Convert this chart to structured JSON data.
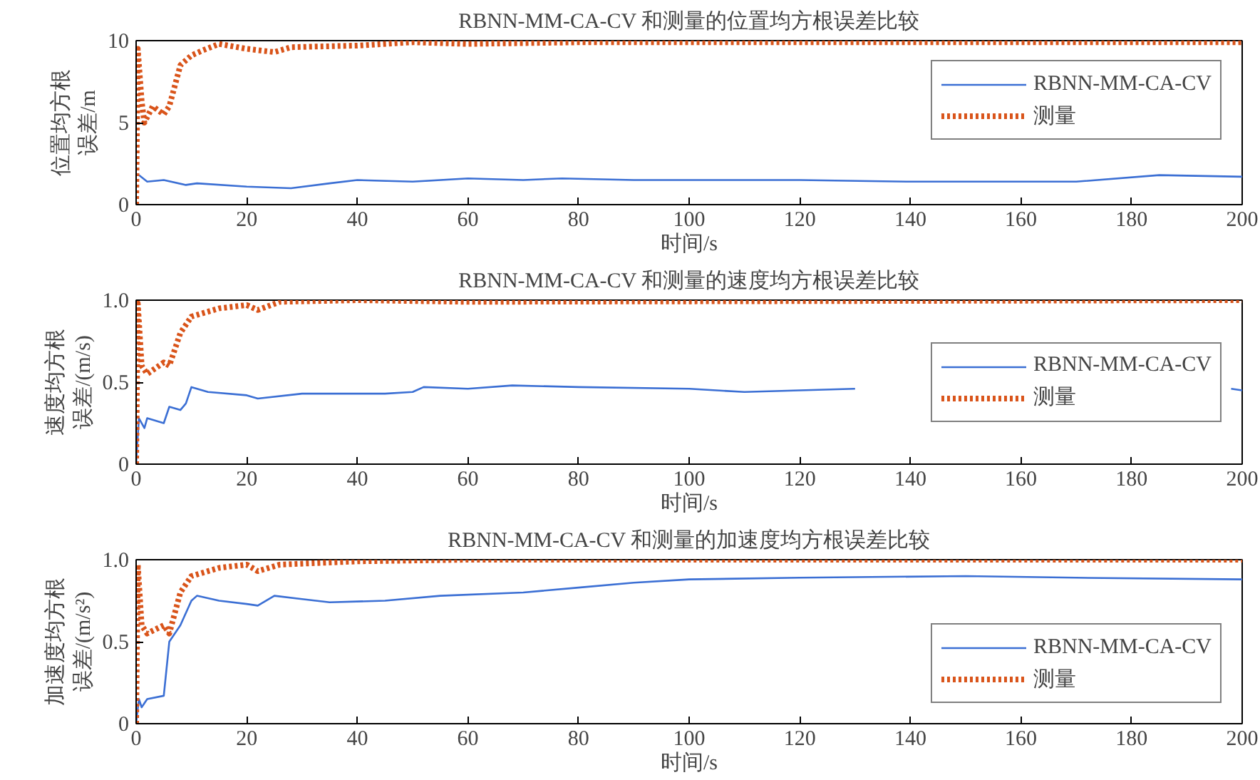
{
  "chart_data": [
    {
      "type": "line",
      "title": "RBNN-MM-CA-CV 和测量的位置均方根误差比较",
      "xlabel": "时间/s",
      "ylabel": "位置均方根误差/m",
      "xlim": [
        0,
        200
      ],
      "ylim": [
        0,
        10
      ],
      "xticks": [
        0,
        20,
        40,
        60,
        80,
        100,
        120,
        140,
        160,
        180,
        200
      ],
      "yticks": [
        0,
        5,
        10
      ],
      "grid": false,
      "legend": "top right",
      "series": [
        {
          "name": "RBNN-MM-CA-CV",
          "color": "#3b6fd4",
          "line_style": "solid",
          "x": [
            0.5,
            2,
            5,
            9,
            11,
            20,
            28,
            35,
            40,
            50,
            60,
            70,
            77,
            90,
            100,
            120,
            140,
            170,
            185,
            200
          ],
          "values": [
            1.8,
            1.4,
            1.5,
            1.2,
            1.3,
            1.1,
            1.0,
            1.3,
            1.5,
            1.4,
            1.6,
            1.5,
            1.6,
            1.5,
            1.5,
            1.5,
            1.4,
            1.4,
            1.8,
            1.7
          ]
        },
        {
          "name": "测量",
          "color": "#d9541a",
          "line_style": "dotted",
          "x": [
            0,
            0.3,
            1,
            1.5,
            3,
            5,
            6,
            8,
            10,
            12,
            15,
            20,
            25,
            28,
            40,
            50,
            60,
            80,
            200
          ],
          "values": [
            0,
            9.5,
            6.3,
            5,
            6,
            5.5,
            6,
            8.5,
            9.1,
            9.4,
            9.8,
            9.5,
            9.3,
            9.6,
            9.7,
            9.9,
            9.8,
            9.9,
            9.9
          ]
        }
      ]
    },
    {
      "type": "line",
      "title": "RBNN-MM-CA-CV 和测量的速度均方根误差比较",
      "xlabel": "时间/s",
      "ylabel": "速度均方根误差/(m/s)",
      "xlim": [
        0,
        200
      ],
      "ylim": [
        0,
        1
      ],
      "xticks": [
        0,
        20,
        40,
        60,
        80,
        100,
        120,
        140,
        160,
        180,
        200
      ],
      "yticks": [
        0,
        0.5,
        {
          "value": 1,
          "label": "1.0"
        }
      ],
      "grid": false,
      "legend": "right",
      "series": [
        {
          "name": "RBNN-MM-CA-CV",
          "color": "#3b6fd4",
          "line_style": "solid",
          "x": [
            0,
            0.5,
            1.5,
            2,
            5,
            6,
            8,
            9,
            10,
            13,
            20,
            22,
            30,
            45,
            50,
            52,
            60,
            68,
            80,
            100,
            110,
            130,
            135,
            198,
            200
          ],
          "values": [
            0,
            0.28,
            0.22,
            0.28,
            0.25,
            0.35,
            0.33,
            0.37,
            0.47,
            0.44,
            0.42,
            0.4,
            0.43,
            0.43,
            0.44,
            0.47,
            0.46,
            0.48,
            0.47,
            0.46,
            0.44,
            0.46,
            null,
            0.46,
            0.45
          ]
        },
        {
          "name": "测量",
          "color": "#d9541a",
          "line_style": "dotted",
          "x": [
            0,
            0.3,
            1,
            2,
            5,
            6,
            8,
            10,
            15,
            20,
            22,
            26,
            40,
            60,
            200
          ],
          "values": [
            0,
            0.98,
            0.6,
            0.55,
            0.62,
            0.6,
            0.8,
            0.9,
            0.95,
            0.97,
            0.94,
            0.99,
            1.0,
            0.99,
            1.0
          ]
        }
      ]
    },
    {
      "type": "line",
      "title": "RBNN-MM-CA-CV 和测量的加速度均方根误差比较",
      "xlabel": "时间/s",
      "ylabel": "加速度均方根误差/(m/s²)",
      "xlim": [
        0,
        200
      ],
      "ylim": [
        0,
        1
      ],
      "xticks": [
        0,
        20,
        40,
        60,
        80,
        100,
        120,
        140,
        160,
        180,
        200
      ],
      "yticks": [
        0,
        0.5,
        {
          "value": 1,
          "label": "1.0"
        }
      ],
      "grid": false,
      "legend": "bottom right",
      "series": [
        {
          "name": "RBNN-MM-CA-CV",
          "color": "#3b6fd4",
          "line_style": "solid",
          "x": [
            0,
            0.5,
            1,
            2,
            5,
            6,
            8,
            10,
            11,
            15,
            20,
            22,
            25,
            30,
            35,
            45,
            55,
            70,
            80,
            90,
            100,
            120,
            150,
            170,
            200
          ],
          "values": [
            0,
            0.15,
            0.1,
            0.15,
            0.17,
            0.5,
            0.6,
            0.75,
            0.78,
            0.75,
            0.73,
            0.72,
            0.78,
            0.76,
            0.74,
            0.75,
            0.78,
            0.8,
            0.83,
            0.86,
            0.88,
            0.89,
            0.9,
            0.89,
            0.88
          ]
        },
        {
          "name": "测量",
          "color": "#d9541a",
          "line_style": "dotted",
          "x": [
            0,
            0.3,
            1,
            2,
            5,
            6,
            8,
            10,
            15,
            20,
            22,
            26,
            40,
            60,
            200
          ],
          "values": [
            0,
            0.97,
            0.6,
            0.55,
            0.6,
            0.55,
            0.8,
            0.9,
            0.95,
            0.97,
            0.93,
            0.97,
            0.99,
            1.0,
            1.0
          ]
        }
      ]
    }
  ]
}
